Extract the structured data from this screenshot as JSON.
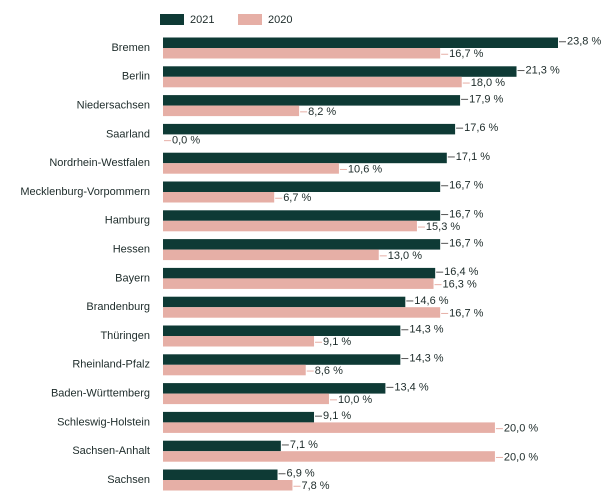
{
  "chart_data": {
    "type": "barh",
    "categories": [
      "Bremen",
      "Berlin",
      "Niedersachsen",
      "Saarland",
      "Nordrhein-Westfalen",
      "Mecklenburg-Vorpommern",
      "Hamburg",
      "Hessen",
      "Bayern",
      "Brandenburg",
      "Thüringen",
      "Rheinland-Pfalz",
      "Baden-Württemberg",
      "Schleswig-Holstein",
      "Sachsen-Anhalt",
      "Sachsen"
    ],
    "series": [
      {
        "name": "2021",
        "color": "#0e3a35",
        "values": [
          23.8,
          21.3,
          17.9,
          17.6,
          17.1,
          16.7,
          16.7,
          16.7,
          16.4,
          14.6,
          14.3,
          14.3,
          13.4,
          9.1,
          7.1,
          6.9
        ],
        "value_labels": [
          "23,8 %",
          "21,3 %",
          "17,9 %",
          "17,6 %",
          "17,1 %",
          "16,7 %",
          "16,7 %",
          "16,7 %",
          "16,4 %",
          "14,6 %",
          "14,3 %",
          "14,3 %",
          "13,4 %",
          "9,1 %",
          "7,1 %",
          "6,9 %"
        ]
      },
      {
        "name": "2020",
        "color": "#e6afa6",
        "values": [
          16.7,
          18.0,
          8.2,
          0.0,
          10.6,
          6.7,
          15.3,
          13.0,
          16.3,
          16.7,
          9.1,
          8.6,
          10.0,
          20.0,
          20.0,
          7.8
        ],
        "value_labels": [
          "16,7 %",
          "18,0 %",
          "8,2 %",
          "0,0 %",
          "10,6 %",
          "6,7 %",
          "15,3 %",
          "13,0 %",
          "16,3 %",
          "16,7 %",
          "9,1 %",
          "8,6 %",
          "10,0 %",
          "20,0 %",
          "20,0 %",
          "7,8 %"
        ]
      }
    ],
    "legend": "top"
  }
}
